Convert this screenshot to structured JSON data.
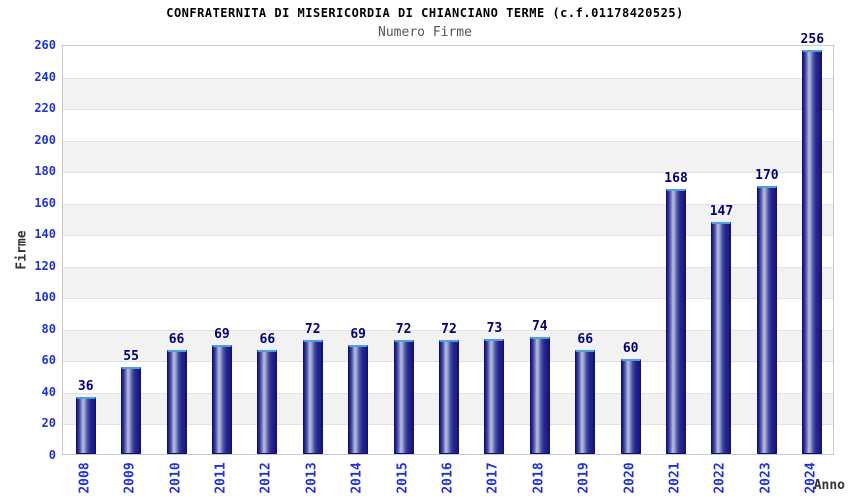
{
  "chart_data": {
    "type": "bar",
    "title": "CONFRATERNITA DI MISERICORDIA DI CHIANCIANO TERME (c.f.01178420525)",
    "subtitle": "Numero Firme",
    "xlabel": "Anno",
    "ylabel": "Firme",
    "categories": [
      "2008",
      "2009",
      "2010",
      "2011",
      "2012",
      "2013",
      "2014",
      "2015",
      "2016",
      "2017",
      "2018",
      "2019",
      "2020",
      "2021",
      "2022",
      "2023",
      "2024"
    ],
    "values": [
      36,
      55,
      66,
      69,
      66,
      72,
      69,
      72,
      72,
      73,
      74,
      66,
      60,
      168,
      147,
      170,
      256
    ],
    "ylim": [
      0,
      260
    ],
    "yticks": [
      0,
      20,
      40,
      60,
      80,
      100,
      120,
      140,
      160,
      180,
      200,
      220,
      240,
      260
    ],
    "grid": "horizontal-bands-alternating",
    "legend_position": "none",
    "colors": {
      "bar_dark": "#1a1a7c",
      "bar_highlight": "#bcc2e0",
      "bar_top_cap": "#4f9ede",
      "tick_label_blue": "#2233cc",
      "value_label_navy": "#000073",
      "title_color": "#000000",
      "subtitle_color": "#555555",
      "axis_label_color": "#333333",
      "band_gray": "#f2f2f2",
      "gridline": "#e2e2e2",
      "plot_border": "#c9c9c9"
    }
  }
}
